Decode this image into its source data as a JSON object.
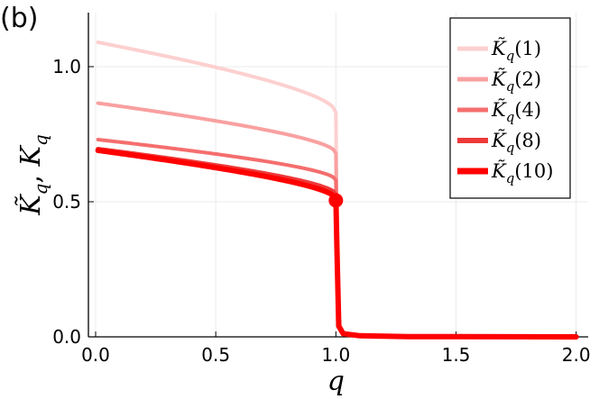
{
  "panel_label": "(b)",
  "chart_data": {
    "type": "line",
    "xlabel": "q",
    "ylabel": "K̃_q, K_q",
    "xlim": [
      -0.03,
      2.05
    ],
    "ylim": [
      0,
      1.2
    ],
    "xticks": [
      0.0,
      0.5,
      1.0,
      1.5,
      2.0
    ],
    "xtick_labels": [
      "0.0",
      "0.5",
      "1.0",
      "1.5",
      "2.0"
    ],
    "yticks": [
      0.0,
      0.5,
      1.0
    ],
    "ytick_labels": [
      "0.0",
      "0.5",
      "1.0"
    ],
    "grid": true,
    "legend_position": "top-right",
    "series": [
      {
        "name": "K̃_q(1)",
        "label_math": "1",
        "color": "#fcd0cf",
        "width": 4,
        "start": 1.09,
        "end": 0.83
      },
      {
        "name": "K̃_q(2)",
        "label_math": "2",
        "color": "#f9a0a0",
        "width": 4,
        "start": 0.865,
        "end": 0.68
      },
      {
        "name": "K̃_q(4)",
        "label_math": "4",
        "color": "#f56e6e",
        "width": 4,
        "start": 0.73,
        "end": 0.58
      },
      {
        "name": "K̃_q(8)",
        "label_math": "8",
        "color": "#ee3939",
        "width": 5,
        "start": 0.695,
        "end": 0.525
      },
      {
        "name": "K̃_q(10)",
        "label_math": "10",
        "color": "#ff0000",
        "width": 6,
        "start": 0.69,
        "end": 0.51
      }
    ],
    "marker": {
      "x": 1.0,
      "y": 0.505,
      "color": "#ff0000"
    }
  }
}
